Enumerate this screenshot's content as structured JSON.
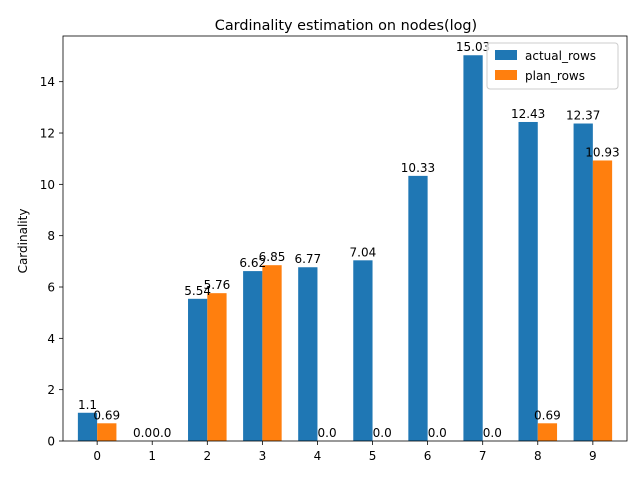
{
  "chart_data": {
    "type": "bar",
    "title": "Cardinality estimation on nodes(log)",
    "xlabel": "",
    "ylabel": "Cardinality",
    "categories": [
      "0",
      "1",
      "2",
      "3",
      "4",
      "5",
      "6",
      "7",
      "8",
      "9"
    ],
    "series": [
      {
        "name": "actual_rows",
        "color": "#1f77b4",
        "values": [
          1.1,
          0.0,
          5.54,
          6.62,
          6.77,
          7.04,
          10.33,
          15.03,
          12.43,
          12.37
        ],
        "labels": [
          "1.1",
          "0.0",
          "5.54",
          "6.62",
          "6.77",
          "7.04",
          "10.33",
          "15.03",
          "12.43",
          "12.37"
        ]
      },
      {
        "name": "plan_rows",
        "color": "#ff7f0e",
        "values": [
          0.69,
          0.0,
          5.76,
          6.85,
          0.0,
          0.0,
          0.0,
          0.0,
          0.69,
          10.93
        ],
        "labels": [
          "0.69",
          "0.0",
          "5.76",
          "6.85",
          "0.0",
          "0.0",
          "0.0",
          "0.0",
          "0.69",
          "10.93"
        ]
      }
    ],
    "ylim": [
      0,
      15.78
    ],
    "yticks": [
      0,
      2,
      4,
      6,
      8,
      10,
      12,
      14
    ],
    "ytick_labels": [
      "0",
      "2",
      "4",
      "6",
      "8",
      "10",
      "12",
      "14"
    ],
    "legend_position": "upper right",
    "grid": false
  }
}
